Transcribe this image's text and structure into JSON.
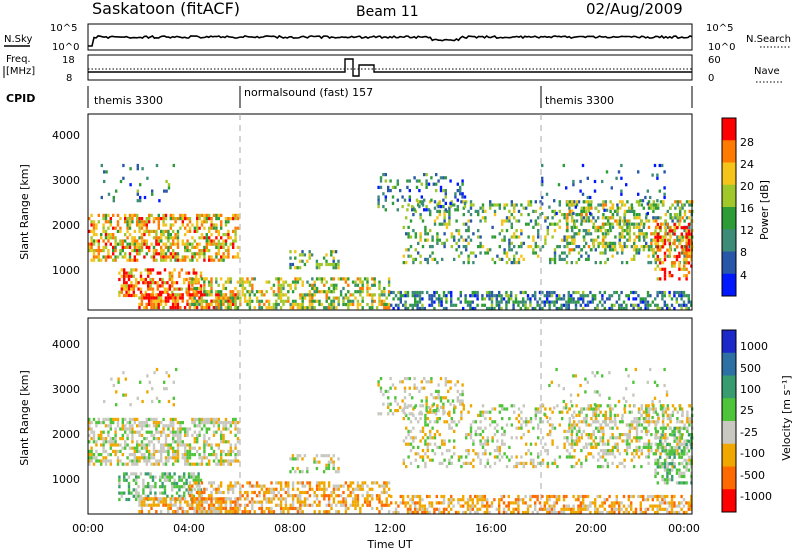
{
  "header": {
    "station": "Saskatoon (fitACF)",
    "beam": "Beam 11",
    "date": "02/Aug/2009"
  },
  "top_panels": {
    "nsky_label": "N.Sky",
    "nsky_ticks": [
      "10^5",
      "10^0"
    ],
    "nsearch_label": "N.Search",
    "nsearch_ticks": [
      "10^5",
      "10^0"
    ],
    "freq_label_1": "Freq.",
    "freq_label_2": "[MHz]",
    "freq_ticks": [
      "18",
      "8"
    ],
    "nave_label": "Nave",
    "nave_ticks": [
      "60",
      "0"
    ],
    "cpid_label": "CPID",
    "cpid_segments": [
      {
        "label": "themis 3300",
        "start_hour": 0
      },
      {
        "label": "normalsound (fast) 157",
        "start_hour": 6
      },
      {
        "label": "themis 3300",
        "start_hour": 18
      }
    ]
  },
  "colors": {
    "power_scale": [
      "#0018ff",
      "#2856a8",
      "#3c8c78",
      "#2e9c36",
      "#a0c82a",
      "#f4c41a",
      "#ff7a00",
      "#ff0000"
    ],
    "velocity_scale": [
      "#1c28c8",
      "#2c70a4",
      "#389c70",
      "#4ec43a",
      "#c8c8c0",
      "#f0a800",
      "#ff6a00",
      "#ff0000"
    ]
  },
  "chart_data": [
    {
      "type": "heatmap",
      "name": "power",
      "ylabel": "Slant Range [km]",
      "ylim": [
        180,
        4500
      ],
      "xlim": [
        0,
        24
      ],
      "yticks": [
        "1000",
        "2000",
        "3000",
        "4000"
      ],
      "colorbar": {
        "label": "Power [dB]",
        "range": [
          0,
          32
        ],
        "ticks": [
          "4",
          "8",
          "12",
          "16",
          "20",
          "24",
          "28"
        ]
      },
      "grid": false
    },
    {
      "type": "heatmap",
      "name": "velocity",
      "ylabel": "Slant Range [km]",
      "xlabel": "Time UT",
      "ylim": [
        180,
        4500
      ],
      "xlim": [
        0,
        24
      ],
      "yticks": [
        "1000",
        "2000",
        "3000",
        "4000"
      ],
      "xticks": [
        "00:00",
        "04:00",
        "08:00",
        "12:00",
        "16:00",
        "20:00",
        "00:00"
      ],
      "colorbar": {
        "label": "Velocity [m s⁻¹]",
        "ticks": [
          "1000",
          "500",
          "100",
          "25",
          "-25",
          "-100",
          "-500",
          "-1000"
        ]
      },
      "grid": false
    }
  ]
}
